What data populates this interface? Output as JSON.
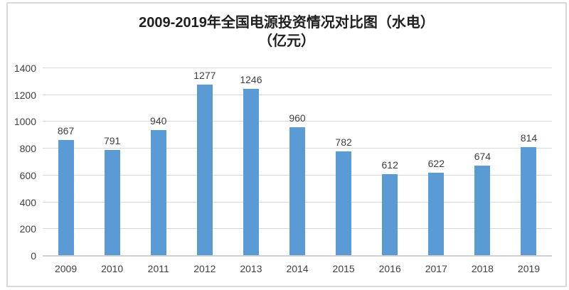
{
  "chart_data": {
    "type": "bar",
    "title": "2009-2019年全国电源投资情况对比图（水电）",
    "subtitle": "（亿元）",
    "categories": [
      "2009",
      "2010",
      "2011",
      "2012",
      "2013",
      "2014",
      "2015",
      "2016",
      "2017",
      "2018",
      "2019"
    ],
    "values": [
      867,
      791,
      940,
      1277,
      1246,
      960,
      782,
      612,
      622,
      674,
      814
    ],
    "xlabel": "",
    "ylabel": "",
    "ylim": [
      0,
      1400
    ],
    "ytick_step": 200,
    "yticks": [
      0,
      200,
      400,
      600,
      800,
      1000,
      1200,
      1400
    ],
    "grid": true,
    "legend": "none",
    "data_labels": true
  },
  "colors": {
    "bar": "#5b9bd5",
    "gridline": "#d9d9d9",
    "axis_line": "#cfcfcf",
    "text": "#404040",
    "title_text": "#1f1f1f",
    "frame_border": "#d9d9d9",
    "background": "#ffffff"
  }
}
